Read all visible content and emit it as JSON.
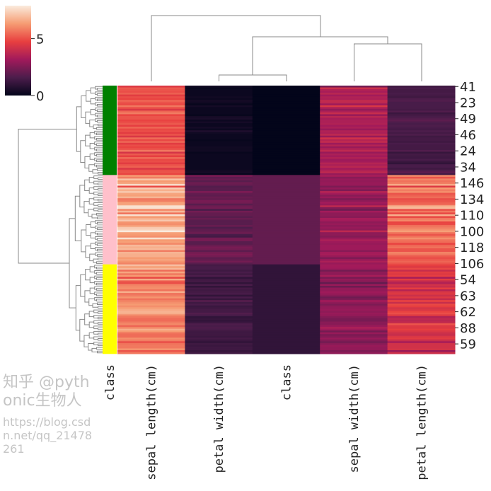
{
  "chart_data": {
    "type": "heatmap",
    "subtype": "clustermap",
    "colormap": "rocket",
    "colorbar": {
      "vmin": 0,
      "vmax": 7.9,
      "ticks": [
        0,
        5
      ]
    },
    "columns": [
      "sepal length(cm)",
      "petal width(cm)",
      "class",
      "sepal width(cm)",
      "petal length(cm)"
    ],
    "row_color_label": "class",
    "row_color_groups": [
      {
        "color": "#008000",
        "count": 50
      },
      {
        "color": "#ffc0cb",
        "count": 50
      },
      {
        "color": "#ffff00",
        "count": 50
      }
    ],
    "row_tick_labels": [
      "41",
      "23",
      "49",
      "46",
      "24",
      "34",
      "146",
      "134",
      "110",
      "100",
      "118",
      "106",
      "54",
      "63",
      "62",
      "88",
      "59"
    ],
    "row_tick_every": 9,
    "rows": [
      [
        4.5,
        0.3,
        0,
        2.3,
        1.3
      ],
      [
        5.2,
        0.1,
        0,
        4.1,
        1.5
      ],
      [
        5.1,
        0.2,
        0,
        3.5,
        1.4
      ],
      [
        5.0,
        0.2,
        0,
        3.3,
        1.4
      ],
      [
        5.3,
        0.2,
        0,
        3.7,
        1.5
      ],
      [
        4.6,
        0.2,
        0,
        3.2,
        1.4
      ],
      [
        5.0,
        0.3,
        0,
        3.5,
        1.3
      ],
      [
        4.8,
        0.2,
        0,
        3.4,
        1.6
      ],
      [
        5.4,
        0.4,
        0,
        3.9,
        1.7
      ],
      [
        5.1,
        0.3,
        0,
        3.8,
        1.5
      ],
      [
        4.9,
        0.1,
        0,
        3.1,
        1.5
      ],
      [
        5.7,
        0.4,
        0,
        4.4,
        1.5
      ],
      [
        5.0,
        0.2,
        0,
        3.4,
        1.5
      ],
      [
        4.4,
        0.2,
        0,
        2.9,
        1.4
      ],
      [
        5.4,
        0.2,
        0,
        3.4,
        1.7
      ],
      [
        5.8,
        0.2,
        0,
        4.0,
        1.2
      ],
      [
        4.8,
        0.1,
        0,
        3.0,
        1.4
      ],
      [
        5.1,
        0.4,
        0,
        3.7,
        1.5
      ],
      [
        5.1,
        0.5,
        0,
        3.3,
        1.7
      ],
      [
        4.8,
        0.2,
        0,
        3.4,
        1.9
      ],
      [
        5.0,
        0.4,
        0,
        3.4,
        1.6
      ],
      [
        5.2,
        0.2,
        0,
        3.5,
        1.5
      ],
      [
        4.7,
        0.2,
        0,
        3.2,
        1.6
      ],
      [
        5.4,
        0.4,
        0,
        3.4,
        1.5
      ],
      [
        4.9,
        0.2,
        0,
        3.0,
        1.4
      ],
      [
        5.0,
        0.6,
        0,
        3.5,
        1.6
      ],
      [
        4.6,
        0.3,
        0,
        3.4,
        1.4
      ],
      [
        5.1,
        0.2,
        0,
        3.8,
        1.6
      ],
      [
        4.4,
        0.2,
        0,
        3.0,
        1.3
      ],
      [
        5.5,
        0.2,
        0,
        4.2,
        1.4
      ],
      [
        4.9,
        0.1,
        0,
        3.6,
        1.4
      ],
      [
        5.4,
        0.2,
        0,
        3.9,
        1.3
      ],
      [
        4.6,
        0.2,
        0,
        3.1,
        1.5
      ],
      [
        5.0,
        0.2,
        0,
        3.6,
        1.4
      ],
      [
        4.8,
        0.3,
        0,
        3.0,
        1.4
      ],
      [
        5.1,
        0.3,
        0,
        3.5,
        1.4
      ],
      [
        5.7,
        0.3,
        0,
        3.8,
        1.7
      ],
      [
        4.3,
        0.1,
        0,
        3.0,
        1.1
      ],
      [
        5.2,
        0.2,
        0,
        3.4,
        1.4
      ],
      [
        4.7,
        0.2,
        0,
        3.2,
        1.3
      ],
      [
        5.5,
        0.2,
        0,
        3.5,
        1.3
      ],
      [
        4.9,
        0.2,
        0,
        3.1,
        1.5
      ],
      [
        5.0,
        0.2,
        0,
        3.2,
        1.2
      ],
      [
        4.6,
        0.2,
        0,
        3.6,
        1.0
      ],
      [
        5.1,
        0.2,
        0,
        3.4,
        1.5
      ],
      [
        5.3,
        0.2,
        0,
        3.7,
        1.5
      ],
      [
        4.4,
        0.2,
        0,
        3.2,
        1.3
      ],
      [
        5.0,
        0.3,
        0,
        3.5,
        1.6
      ],
      [
        5.1,
        0.4,
        0,
        3.8,
        1.9
      ],
      [
        4.8,
        0.1,
        0,
        3.0,
        1.4
      ],
      [
        6.3,
        2.5,
        2,
        3.3,
        6.0
      ],
      [
        5.8,
        1.9,
        2,
        2.7,
        5.1
      ],
      [
        7.1,
        2.1,
        2,
        3.0,
        5.9
      ],
      [
        6.3,
        1.8,
        2,
        2.9,
        5.6
      ],
      [
        6.5,
        2.2,
        2,
        3.0,
        5.8
      ],
      [
        7.6,
        2.1,
        2,
        3.0,
        6.6
      ],
      [
        4.9,
        1.7,
        2,
        2.5,
        4.5
      ],
      [
        7.3,
        1.8,
        2,
        2.9,
        6.3
      ],
      [
        6.7,
        1.8,
        2,
        2.5,
        5.8
      ],
      [
        7.2,
        2.5,
        2,
        3.6,
        6.1
      ],
      [
        6.5,
        2.0,
        2,
        3.2,
        5.1
      ],
      [
        6.4,
        1.9,
        2,
        2.7,
        5.3
      ],
      [
        6.8,
        2.1,
        2,
        3.0,
        5.5
      ],
      [
        5.7,
        2.0,
        2,
        2.5,
        5.0
      ],
      [
        5.8,
        2.4,
        2,
        2.8,
        5.1
      ],
      [
        6.4,
        2.3,
        2,
        3.2,
        5.3
      ],
      [
        6.5,
        1.8,
        2,
        3.0,
        5.5
      ],
      [
        7.7,
        2.2,
        2,
        3.8,
        6.7
      ],
      [
        7.7,
        2.3,
        2,
        2.6,
        6.9
      ],
      [
        6.0,
        1.5,
        2,
        2.2,
        5.0
      ],
      [
        6.9,
        2.3,
        2,
        3.2,
        5.7
      ],
      [
        5.6,
        2.0,
        2,
        2.8,
        4.9
      ],
      [
        7.7,
        2.0,
        2,
        2.8,
        6.7
      ],
      [
        6.3,
        1.8,
        2,
        2.7,
        4.9
      ],
      [
        6.7,
        2.1,
        2,
        3.3,
        5.7
      ],
      [
        7.2,
        1.8,
        2,
        3.2,
        6.0
      ],
      [
        6.2,
        1.8,
        2,
        2.8,
        4.8
      ],
      [
        6.1,
        1.8,
        2,
        3.0,
        4.9
      ],
      [
        6.4,
        2.1,
        2,
        2.8,
        5.6
      ],
      [
        7.2,
        1.6,
        2,
        3.0,
        5.8
      ],
      [
        7.4,
        1.9,
        2,
        2.8,
        6.1
      ],
      [
        7.9,
        2.0,
        2,
        3.8,
        6.4
      ],
      [
        6.4,
        2.2,
        2,
        2.8,
        5.6
      ],
      [
        6.3,
        1.5,
        2,
        2.8,
        5.1
      ],
      [
        6.1,
        1.4,
        2,
        2.6,
        5.6
      ],
      [
        7.7,
        2.3,
        2,
        3.0,
        6.1
      ],
      [
        6.3,
        2.4,
        2,
        3.4,
        5.6
      ],
      [
        6.4,
        1.8,
        2,
        3.1,
        5.5
      ],
      [
        6.0,
        1.8,
        2,
        3.0,
        4.8
      ],
      [
        6.9,
        2.1,
        2,
        3.1,
        5.4
      ],
      [
        6.7,
        2.4,
        2,
        3.1,
        5.6
      ],
      [
        6.9,
        2.3,
        2,
        3.1,
        5.1
      ],
      [
        5.8,
        1.9,
        2,
        2.7,
        5.1
      ],
      [
        6.8,
        2.3,
        2,
        3.2,
        5.9
      ],
      [
        6.7,
        2.5,
        2,
        3.3,
        5.7
      ],
      [
        6.7,
        2.3,
        2,
        3.0,
        5.2
      ],
      [
        6.3,
        1.9,
        2,
        2.5,
        5.0
      ],
      [
        6.5,
        2.0,
        2,
        3.0,
        5.2
      ],
      [
        6.2,
        2.3,
        2,
        3.4,
        5.4
      ],
      [
        5.9,
        1.8,
        2,
        3.0,
        5.1
      ],
      [
        7.0,
        1.4,
        1,
        3.2,
        4.7
      ],
      [
        6.4,
        1.5,
        1,
        3.2,
        4.5
      ],
      [
        6.9,
        1.5,
        1,
        3.1,
        4.9
      ],
      [
        5.5,
        1.3,
        1,
        2.3,
        4.0
      ],
      [
        6.5,
        1.5,
        1,
        2.8,
        4.6
      ],
      [
        5.7,
        1.3,
        1,
        2.8,
        4.5
      ],
      [
        6.3,
        1.6,
        1,
        3.3,
        4.7
      ],
      [
        4.9,
        1.0,
        1,
        2.4,
        3.3
      ],
      [
        6.6,
        1.3,
        1,
        2.9,
        4.6
      ],
      [
        5.2,
        1.4,
        1,
        2.7,
        3.9
      ],
      [
        5.0,
        1.0,
        1,
        2.0,
        3.5
      ],
      [
        5.9,
        1.5,
        1,
        3.0,
        4.2
      ],
      [
        6.0,
        1.0,
        1,
        2.2,
        4.0
      ],
      [
        6.1,
        1.4,
        1,
        2.9,
        4.7
      ],
      [
        5.6,
        1.3,
        1,
        2.9,
        3.6
      ],
      [
        6.7,
        1.4,
        1,
        3.1,
        4.4
      ],
      [
        5.6,
        1.5,
        1,
        3.0,
        4.5
      ],
      [
        5.8,
        1.0,
        1,
        2.7,
        4.1
      ],
      [
        6.2,
        1.5,
        1,
        2.2,
        4.5
      ],
      [
        5.6,
        1.1,
        1,
        2.5,
        3.9
      ],
      [
        5.9,
        1.8,
        1,
        3.2,
        4.8
      ],
      [
        6.1,
        1.3,
        1,
        2.8,
        4.0
      ],
      [
        6.3,
        1.5,
        1,
        2.5,
        4.9
      ],
      [
        6.1,
        1.2,
        1,
        2.8,
        4.7
      ],
      [
        6.4,
        1.3,
        1,
        2.9,
        4.3
      ],
      [
        6.6,
        1.4,
        1,
        3.0,
        4.4
      ],
      [
        6.8,
        1.4,
        1,
        2.8,
        4.8
      ],
      [
        6.7,
        1.7,
        1,
        3.0,
        5.0
      ],
      [
        6.0,
        1.5,
        1,
        2.9,
        4.5
      ],
      [
        5.7,
        1.0,
        1,
        2.6,
        3.5
      ],
      [
        5.5,
        1.1,
        1,
        2.4,
        3.8
      ],
      [
        5.5,
        1.0,
        1,
        2.4,
        3.7
      ],
      [
        5.8,
        1.2,
        1,
        2.7,
        3.9
      ],
      [
        6.0,
        1.6,
        1,
        2.7,
        5.1
      ],
      [
        5.4,
        1.5,
        1,
        3.0,
        4.5
      ],
      [
        6.0,
        1.6,
        1,
        3.4,
        4.5
      ],
      [
        6.7,
        1.5,
        1,
        3.1,
        4.7
      ],
      [
        6.3,
        1.3,
        1,
        2.3,
        4.4
      ],
      [
        5.6,
        1.3,
        1,
        3.0,
        4.1
      ],
      [
        5.5,
        1.3,
        1,
        2.5,
        4.0
      ],
      [
        5.5,
        1.2,
        1,
        2.6,
        4.4
      ],
      [
        6.1,
        1.4,
        1,
        3.0,
        4.6
      ],
      [
        5.8,
        1.2,
        1,
        2.6,
        4.0
      ],
      [
        5.0,
        1.0,
        1,
        2.3,
        3.3
      ],
      [
        5.6,
        1.3,
        1,
        2.7,
        4.2
      ],
      [
        5.7,
        1.2,
        1,
        3.0,
        4.2
      ],
      [
        5.7,
        1.3,
        1,
        2.9,
        4.2
      ],
      [
        6.2,
        1.3,
        1,
        2.9,
        4.3
      ],
      [
        5.1,
        1.1,
        1,
        2.5,
        3.0
      ],
      [
        5.7,
        1.3,
        1,
        2.8,
        4.1
      ]
    ]
  },
  "watermark": {
    "line1": "知乎 @pythonic生物人",
    "line2": "https://blog.csdn.net/qq_21478261"
  }
}
